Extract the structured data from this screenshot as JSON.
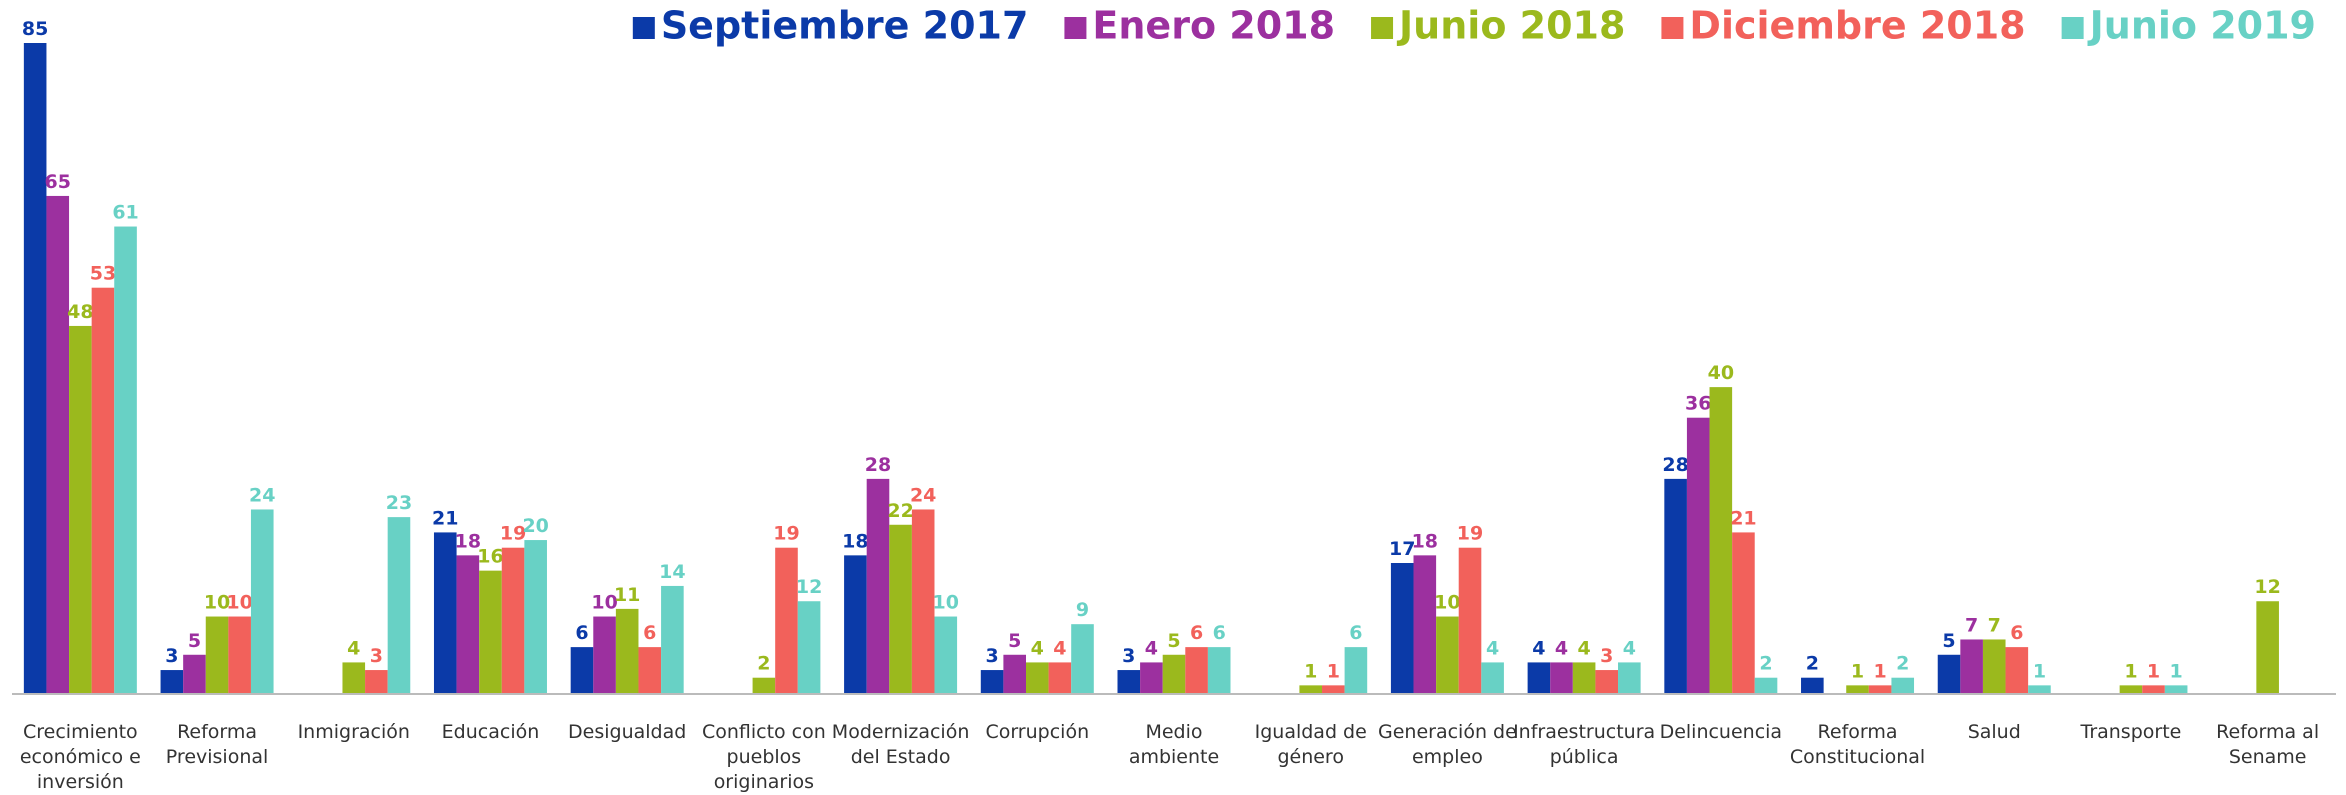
{
  "chart_data": {
    "type": "bar",
    "categories": [
      "Crecimiento\neconómico e\ninversión",
      "Reforma\nPrevisional",
      "Inmigración",
      "Educación",
      "Desigualdad",
      "Conflicto con\npueblos\noriginarios",
      "Modernización\ndel Estado",
      "Corrupción",
      "Medio\nambiente",
      "Igualdad de\ngénero",
      "Generación de\nempleo",
      "Infraestructura\npública",
      "Delincuencia",
      "Reforma\nConstitucional",
      "Salud",
      "Transporte",
      "Reforma al\nSename"
    ],
    "series": [
      {
        "name": "Septiembre 2017",
        "color": "#0b3aa8",
        "values": [
          85,
          3,
          null,
          21,
          6,
          null,
          18,
          3,
          3,
          null,
          17,
          4,
          28,
          2,
          5,
          null,
          null
        ]
      },
      {
        "name": "Enero 2018",
        "color": "#9c309f",
        "values": [
          65,
          5,
          null,
          18,
          10,
          null,
          28,
          5,
          4,
          null,
          18,
          4,
          36,
          null,
          7,
          null,
          null
        ]
      },
      {
        "name": "Junio 2018",
        "color": "#9bb91d",
        "values": [
          48,
          10,
          4,
          16,
          11,
          2,
          22,
          4,
          5,
          1,
          10,
          4,
          40,
          1,
          7,
          1,
          12
        ]
      },
      {
        "name": "Diciembre 2018",
        "color": "#f2615b",
        "values": [
          53,
          10,
          3,
          19,
          6,
          19,
          24,
          4,
          6,
          1,
          19,
          3,
          21,
          1,
          6,
          1,
          null
        ]
      },
      {
        "name": "Junio 2019",
        "color": "#68d1c5",
        "values": [
          61,
          24,
          23,
          20,
          14,
          12,
          10,
          9,
          6,
          6,
          4,
          4,
          2,
          2,
          1,
          1,
          null
        ]
      }
    ],
    "legend": "top-right"
  }
}
